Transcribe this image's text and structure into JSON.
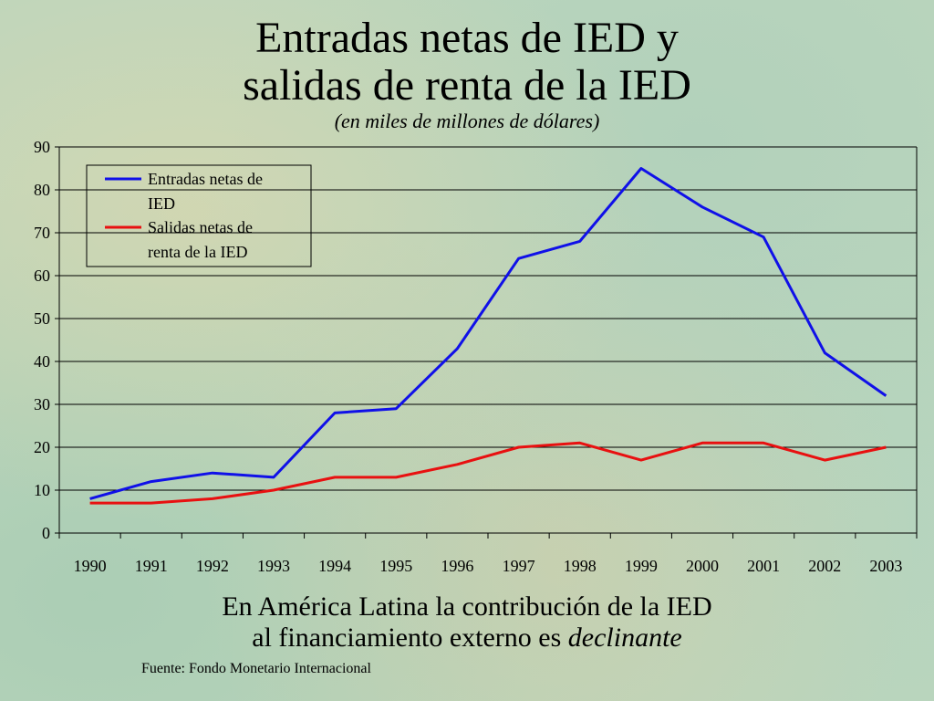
{
  "title_line1": "Entradas netas de IED y",
  "title_line2": "salidas de renta de la IED",
  "subtitle": "(en miles de millones de dólares)",
  "caption_line1": "En América Latina la contribución de la IED",
  "caption_line2_plain": "al financiamiento externo es ",
  "caption_line2_italic": "declinante",
  "source": "Fuente: Fondo Monetario Internacional",
  "colors": {
    "entradas": "#1010e8",
    "salidas": "#e81010",
    "grid": "#000000"
  },
  "chart_data": {
    "type": "line",
    "x": [
      "1990",
      "1991",
      "1992",
      "1993",
      "1994",
      "1995",
      "1996",
      "1997",
      "1998",
      "1999",
      "2000",
      "2001",
      "2002",
      "2003"
    ],
    "ylim": [
      0,
      90
    ],
    "yticks": [
      0,
      10,
      20,
      30,
      40,
      50,
      60,
      70,
      80,
      90
    ],
    "grid": true,
    "legend_position": "top-left",
    "series": [
      {
        "name": "Entradas netas de IED",
        "legend_lines": [
          "Entradas netas de",
          "IED"
        ],
        "color": "#1010e8",
        "values": [
          8,
          12,
          14,
          13,
          28,
          29,
          43,
          64,
          68,
          85,
          76,
          69,
          42,
          32
        ]
      },
      {
        "name": "Salidas netas de renta de la IED",
        "legend_lines": [
          "Salidas netas de",
          "renta de la IED"
        ],
        "color": "#e81010",
        "values": [
          7,
          7,
          8,
          10,
          13,
          13,
          16,
          20,
          21,
          17,
          21,
          21,
          17,
          20
        ]
      }
    ]
  }
}
